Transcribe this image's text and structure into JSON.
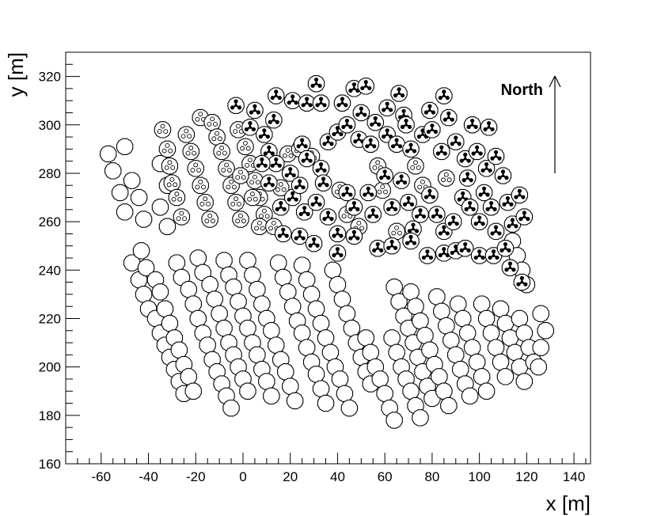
{
  "chart_data": {
    "type": "scatter",
    "xlabel": "x [m]",
    "ylabel": "y [m]",
    "xlim": [
      -75,
      147
    ],
    "ylim": [
      160,
      330
    ],
    "x_ticks": [
      -60,
      -40,
      -20,
      0,
      20,
      40,
      60,
      80,
      100,
      120,
      140
    ],
    "y_ticks": [
      160,
      180,
      200,
      220,
      240,
      260,
      280,
      300,
      320
    ],
    "annotation": "North",
    "colors": {
      "stroke": "#000000",
      "background": "#ffffff",
      "filled_marker": "#000000",
      "open_marker": "#ffffff"
    },
    "series": [
      {
        "marker": "empty",
        "points": [
          [
            -57,
            288
          ],
          [
            -50,
            291
          ],
          [
            -55,
            281
          ],
          [
            -47,
            277
          ],
          [
            -52,
            272
          ],
          [
            -44,
            270
          ],
          [
            -50,
            264
          ],
          [
            -42,
            261
          ],
          [
            -35,
            284
          ],
          [
            -32,
            275
          ],
          [
            -35,
            266
          ],
          [
            -32,
            258
          ],
          [
            -47,
            243
          ],
          [
            -44,
            236
          ],
          [
            -42,
            230
          ],
          [
            -40,
            224
          ],
          [
            -37,
            220
          ],
          [
            -35,
            214
          ],
          [
            -33,
            209
          ],
          [
            -31,
            204
          ],
          [
            -29,
            199
          ],
          [
            -27,
            194
          ],
          [
            -25,
            189
          ],
          [
            -43,
            248
          ],
          [
            -41,
            241
          ],
          [
            -37,
            236
          ],
          [
            -35,
            231
          ],
          [
            -33,
            224
          ],
          [
            -31,
            218
          ],
          [
            -29,
            212
          ],
          [
            -27,
            207
          ],
          [
            -25,
            201
          ],
          [
            -23,
            196
          ],
          [
            -21,
            190
          ],
          [
            -28,
            243
          ],
          [
            -26,
            237
          ],
          [
            -23,
            232
          ],
          [
            -21,
            226
          ],
          [
            -19,
            220
          ],
          [
            -17,
            214
          ],
          [
            -15,
            209
          ],
          [
            -13,
            203
          ],
          [
            -11,
            198
          ],
          [
            -9,
            193
          ],
          [
            -7,
            188
          ],
          [
            -5,
            183
          ],
          [
            -19,
            245
          ],
          [
            -17,
            239
          ],
          [
            -14,
            234
          ],
          [
            -12,
            228
          ],
          [
            -10,
            222
          ],
          [
            -8,
            216
          ],
          [
            -6,
            210
          ],
          [
            -4,
            205
          ],
          [
            -2,
            200
          ],
          [
            0,
            195
          ],
          [
            2,
            190
          ],
          [
            -8,
            244
          ],
          [
            -6,
            238
          ],
          [
            -4,
            233
          ],
          [
            -2,
            227
          ],
          [
            0,
            221
          ],
          [
            2,
            216
          ],
          [
            4,
            210
          ],
          [
            6,
            205
          ],
          [
            8,
            199
          ],
          [
            10,
            194
          ],
          [
            12,
            188
          ],
          [
            2,
            244
          ],
          [
            4,
            238
          ],
          [
            6,
            232
          ],
          [
            8,
            226
          ],
          [
            10,
            220
          ],
          [
            12,
            215
          ],
          [
            14,
            209
          ],
          [
            16,
            203
          ],
          [
            18,
            198
          ],
          [
            20,
            192
          ],
          [
            22,
            186
          ],
          [
            15,
            243
          ],
          [
            17,
            237
          ],
          [
            19,
            231
          ],
          [
            21,
            225
          ],
          [
            23,
            219
          ],
          [
            25,
            214
          ],
          [
            27,
            208
          ],
          [
            29,
            202
          ],
          [
            31,
            197
          ],
          [
            33,
            191
          ],
          [
            35,
            185
          ],
          [
            25,
            242
          ],
          [
            27,
            236
          ],
          [
            29,
            230
          ],
          [
            31,
            224
          ],
          [
            33,
            218
          ],
          [
            35,
            212
          ],
          [
            37,
            206
          ],
          [
            39,
            200
          ],
          [
            41,
            195
          ],
          [
            43,
            189
          ],
          [
            45,
            183
          ],
          [
            38,
            240
          ],
          [
            40,
            234
          ],
          [
            42,
            228
          ],
          [
            44,
            222
          ],
          [
            46,
            216
          ],
          [
            48,
            210
          ],
          [
            50,
            204
          ],
          [
            52,
            198
          ],
          [
            54,
            193
          ],
          [
            52,
            212
          ],
          [
            54,
            206
          ],
          [
            56,
            200
          ],
          [
            58,
            195
          ],
          [
            60,
            189
          ],
          [
            62,
            183
          ],
          [
            64,
            178
          ],
          [
            63,
            212
          ],
          [
            65,
            206
          ],
          [
            67,
            200
          ],
          [
            69,
            195
          ],
          [
            71,
            190
          ],
          [
            73,
            184
          ],
          [
            75,
            179
          ],
          [
            64,
            233
          ],
          [
            66,
            227
          ],
          [
            68,
            221
          ],
          [
            70,
            216
          ],
          [
            72,
            210
          ],
          [
            74,
            204
          ],
          [
            76,
            198
          ],
          [
            78,
            192
          ],
          [
            80,
            187
          ],
          [
            71,
            231
          ],
          [
            73,
            225
          ],
          [
            75,
            219
          ],
          [
            77,
            213
          ],
          [
            79,
            207
          ],
          [
            81,
            201
          ],
          [
            83,
            196
          ],
          [
            85,
            190
          ],
          [
            87,
            184
          ],
          [
            82,
            229
          ],
          [
            84,
            223
          ],
          [
            86,
            217
          ],
          [
            88,
            211
          ],
          [
            90,
            205
          ],
          [
            92,
            199
          ],
          [
            94,
            193
          ],
          [
            96,
            188
          ],
          [
            91,
            226
          ],
          [
            93,
            220
          ],
          [
            95,
            214
          ],
          [
            97,
            208
          ],
          [
            99,
            202
          ],
          [
            101,
            196
          ],
          [
            103,
            190
          ],
          [
            101,
            226
          ],
          [
            103,
            220
          ],
          [
            105,
            214
          ],
          [
            107,
            208
          ],
          [
            109,
            202
          ],
          [
            111,
            196
          ],
          [
            109,
            224
          ],
          [
            111,
            218
          ],
          [
            113,
            212
          ],
          [
            115,
            206
          ],
          [
            117,
            200
          ],
          [
            119,
            194
          ],
          [
            117,
            220
          ],
          [
            119,
            214
          ],
          [
            121,
            208
          ],
          [
            123,
            202
          ],
          [
            126,
            222
          ],
          [
            128,
            215
          ],
          [
            126,
            208
          ],
          [
            125,
            200
          ],
          [
            114,
            252
          ],
          [
            116,
            246
          ],
          [
            118,
            240
          ],
          [
            120,
            234
          ]
        ]
      },
      {
        "marker": "open",
        "points": [
          [
            -34,
            298
          ],
          [
            -32,
            290
          ],
          [
            -31,
            283
          ],
          [
            -30,
            276
          ],
          [
            -28,
            270
          ],
          [
            -26,
            262
          ],
          [
            -24,
            296
          ],
          [
            -22,
            289
          ],
          [
            -20,
            282
          ],
          [
            -18,
            275
          ],
          [
            -16,
            268
          ],
          [
            -14,
            261
          ],
          [
            -18,
            303
          ],
          [
            -13,
            301
          ],
          [
            -11,
            295
          ],
          [
            -9,
            289
          ],
          [
            -7,
            282
          ],
          [
            -5,
            275
          ],
          [
            -3,
            268
          ],
          [
            -1,
            261
          ],
          [
            -2,
            298
          ],
          [
            1,
            291
          ],
          [
            3,
            284
          ],
          [
            5,
            277
          ],
          [
            7,
            270
          ],
          [
            9,
            263
          ],
          [
            -1,
            279
          ],
          [
            4,
            270
          ],
          [
            7,
            258
          ],
          [
            13,
            258
          ],
          [
            16,
            274
          ],
          [
            19,
            288
          ],
          [
            24,
            290
          ],
          [
            29,
            287
          ],
          [
            41,
            273
          ],
          [
            44,
            263
          ],
          [
            49,
            258
          ],
          [
            57,
            283
          ],
          [
            59,
            273
          ],
          [
            65,
            256
          ],
          [
            73,
            283
          ],
          [
            76,
            275
          ],
          [
            86,
            278
          ]
        ]
      },
      {
        "marker": "filled",
        "points": [
          [
            -3,
            308
          ],
          [
            5,
            306
          ],
          [
            13,
            302
          ],
          [
            14,
            312
          ],
          [
            21,
            310
          ],
          [
            27,
            309
          ],
          [
            31,
            317
          ],
          [
            33,
            309
          ],
          [
            42,
            309
          ],
          [
            47,
            315
          ],
          [
            52,
            316
          ],
          [
            50,
            305
          ],
          [
            61,
            307
          ],
          [
            66,
            313
          ],
          [
            68,
            304
          ],
          [
            79,
            306
          ],
          [
            85,
            312
          ],
          [
            87,
            303
          ],
          [
            97,
            300
          ],
          [
            104,
            299
          ],
          [
            3,
            299
          ],
          [
            9,
            296
          ],
          [
            11,
            289
          ],
          [
            14,
            284
          ],
          [
            20,
            280
          ],
          [
            25,
            292
          ],
          [
            27,
            286
          ],
          [
            33,
            282
          ],
          [
            36,
            293
          ],
          [
            40,
            297
          ],
          [
            44,
            300
          ],
          [
            49,
            294
          ],
          [
            54,
            292
          ],
          [
            56,
            301
          ],
          [
            61,
            296
          ],
          [
            65,
            292
          ],
          [
            69,
            300
          ],
          [
            71,
            290
          ],
          [
            76,
            296
          ],
          [
            80,
            298
          ],
          [
            84,
            289
          ],
          [
            90,
            293
          ],
          [
            94,
            286
          ],
          [
            99,
            289
          ],
          [
            103,
            282
          ],
          [
            107,
            287
          ],
          [
            8,
            284
          ],
          [
            11,
            276
          ],
          [
            16,
            266
          ],
          [
            21,
            270
          ],
          [
            24,
            275
          ],
          [
            26,
            264
          ],
          [
            31,
            268
          ],
          [
            34,
            276
          ],
          [
            36,
            262
          ],
          [
            40,
            255
          ],
          [
            44,
            272
          ],
          [
            47,
            266
          ],
          [
            53,
            272
          ],
          [
            55,
            263
          ],
          [
            60,
            279
          ],
          [
            63,
            266
          ],
          [
            67,
            277
          ],
          [
            70,
            268
          ],
          [
            72,
            257
          ],
          [
            75,
            263
          ],
          [
            79,
            271
          ],
          [
            82,
            263
          ],
          [
            85,
            256
          ],
          [
            89,
            260
          ],
          [
            93,
            270
          ],
          [
            95,
            278
          ],
          [
            96,
            266
          ],
          [
            100,
            260
          ],
          [
            102,
            272
          ],
          [
            105,
            266
          ],
          [
            107,
            256
          ],
          [
            110,
            279
          ],
          [
            112,
            268
          ],
          [
            114,
            259
          ],
          [
            117,
            271
          ],
          [
            119,
            262
          ],
          [
            17,
            255
          ],
          [
            24,
            254
          ],
          [
            30,
            251
          ],
          [
            40,
            247
          ],
          [
            47,
            254
          ],
          [
            57,
            249
          ],
          [
            63,
            250
          ],
          [
            71,
            252
          ],
          [
            78,
            246
          ],
          [
            85,
            247
          ],
          [
            90,
            248
          ],
          [
            94,
            249
          ],
          [
            100,
            246
          ],
          [
            106,
            246
          ],
          [
            111,
            249
          ],
          [
            113,
            241
          ],
          [
            118,
            235
          ]
        ]
      }
    ]
  }
}
